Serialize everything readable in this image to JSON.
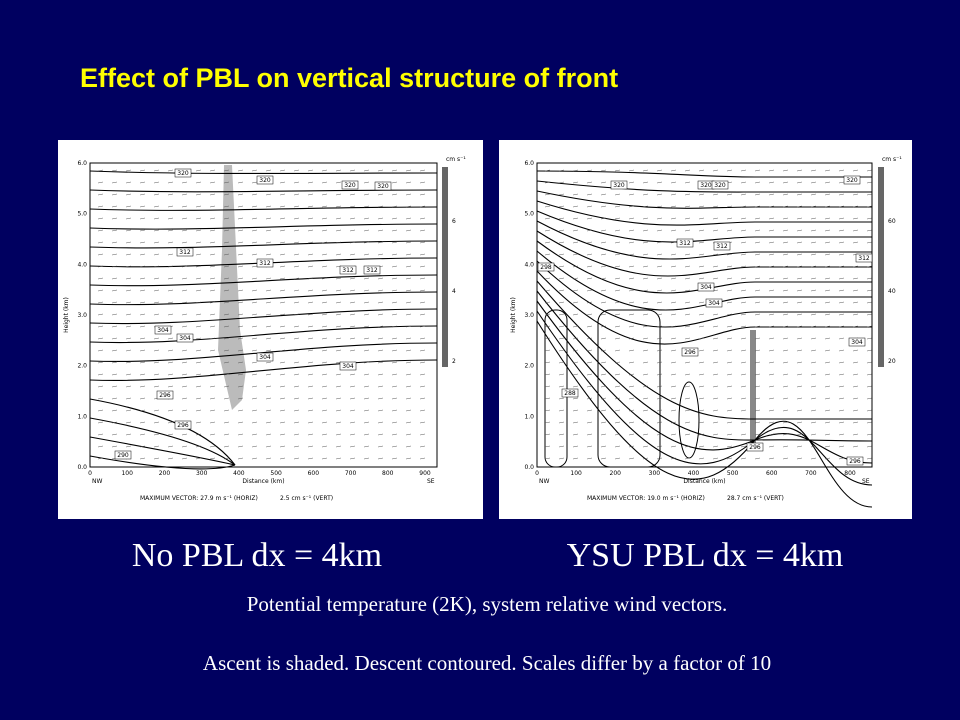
{
  "title": "Effect of PBL on vertical structure of front",
  "panels": [
    {
      "label": "No PBL dx = 4km",
      "plot": {
        "y_axis_label": "Height (km)",
        "x_axis_label": "Distance (km)",
        "yticks": [
          "0.0",
          "1.0",
          "2.0",
          "3.0",
          "4.0",
          "5.0",
          "6.0"
        ],
        "xticks": [
          "0",
          "100",
          "200",
          "300",
          "400",
          "500",
          "600",
          "700",
          "800",
          "900"
        ],
        "left_end": "NW",
        "right_end": "SE",
        "footer": [
          "MAXIMUM VECTOR:  27.9 m s⁻¹ (HORIZ)",
          "2.5 cm s⁻¹ (VERT)"
        ],
        "colorbar_unit": "cm s⁻¹",
        "colorbar_ticks": [
          "2",
          "4",
          "6"
        ],
        "contour_labels": [
          "320",
          "320",
          "320",
          "320",
          "312",
          "312",
          "312",
          "312",
          "304",
          "304",
          "304",
          "304",
          "296",
          "296",
          "290"
        ]
      }
    },
    {
      "label": "YSU PBL dx = 4km",
      "plot": {
        "y_axis_label": "Height (km)",
        "x_axis_label": "Distance (km)",
        "yticks": [
          "0.0",
          "1.0",
          "2.0",
          "3.0",
          "4.0",
          "5.0",
          "6.0"
        ],
        "xticks": [
          "0",
          "100",
          "200",
          "300",
          "400",
          "500",
          "600",
          "700",
          "800"
        ],
        "left_end": "NW",
        "right_end": "SE",
        "footer": [
          "MAXIMUM VECTOR:  19.0 m s⁻¹ (HORIZ)",
          "28.7 cm s⁻¹ (VERT)"
        ],
        "colorbar_unit": "cm s⁻¹",
        "colorbar_ticks": [
          "20",
          "40",
          "60"
        ],
        "contour_labels": [
          "320",
          "320",
          "320",
          "320",
          "312",
          "312",
          "312",
          "304",
          "304",
          "304",
          "298",
          "296",
          "288",
          "296",
          "296"
        ]
      }
    }
  ],
  "captions": [
    "Potential temperature (2K), system relative wind vectors.",
    "Ascent is shaded. Descent contoured. Scales differ by a factor of 10"
  ]
}
